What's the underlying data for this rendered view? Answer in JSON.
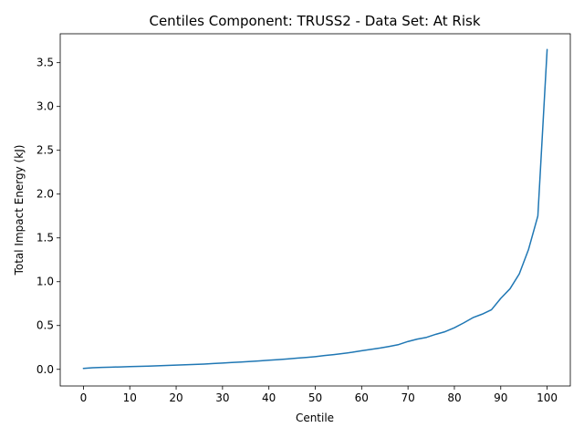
{
  "chart_data": {
    "type": "line",
    "title": "Centiles Component: TRUSS2 - Data Set: At Risk",
    "xlabel": "Centile",
    "ylabel": "Total Impact Energy (kJ)",
    "xlim": [
      -5,
      105
    ],
    "ylim": [
      -0.19,
      3.83
    ],
    "xticks": [
      0,
      10,
      20,
      30,
      40,
      50,
      60,
      70,
      80,
      90,
      100
    ],
    "xtick_labels": [
      "0",
      "10",
      "20",
      "30",
      "40",
      "50",
      "60",
      "70",
      "80",
      "90",
      "100"
    ],
    "yticks": [
      0.0,
      0.5,
      1.0,
      1.5,
      2.0,
      2.5,
      3.0,
      3.5
    ],
    "ytick_labels": [
      "0.0",
      "0.5",
      "1.0",
      "1.5",
      "2.0",
      "2.5",
      "3.0",
      "3.5"
    ],
    "grid": false,
    "series": [
      {
        "color": "#1f77b4",
        "x": [
          0,
          2,
          4,
          6,
          8,
          10,
          12,
          14,
          16,
          18,
          20,
          22,
          24,
          26,
          28,
          30,
          32,
          34,
          36,
          38,
          40,
          42,
          44,
          46,
          48,
          50,
          52,
          54,
          56,
          58,
          60,
          62,
          64,
          66,
          68,
          70,
          72,
          74,
          76,
          78,
          80,
          82,
          84,
          86,
          88,
          90,
          92,
          94,
          96,
          98,
          100
        ],
        "y": [
          0.01,
          0.018,
          0.022,
          0.025,
          0.028,
          0.031,
          0.034,
          0.037,
          0.04,
          0.044,
          0.048,
          0.052,
          0.056,
          0.06,
          0.066,
          0.072,
          0.078,
          0.084,
          0.09,
          0.097,
          0.104,
          0.111,
          0.119,
          0.127,
          0.135,
          0.145,
          0.157,
          0.168,
          0.181,
          0.195,
          0.212,
          0.228,
          0.243,
          0.262,
          0.283,
          0.318,
          0.345,
          0.365,
          0.4,
          0.43,
          0.475,
          0.53,
          0.59,
          0.63,
          0.68,
          0.81,
          0.92,
          1.09,
          1.37,
          1.75,
          3.65
        ]
      }
    ]
  }
}
